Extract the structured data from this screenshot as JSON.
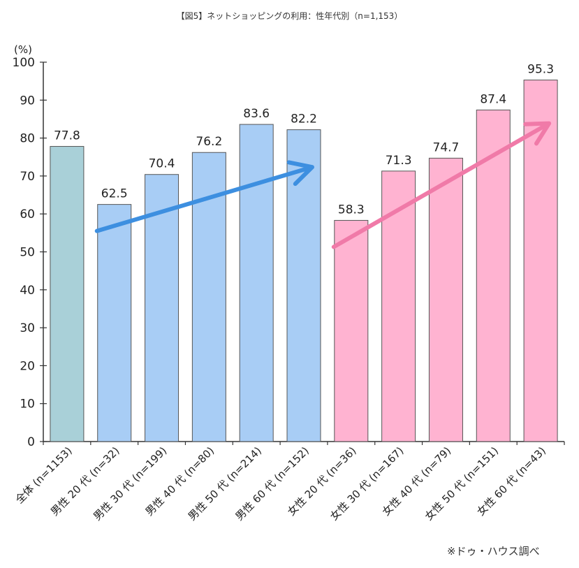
{
  "chart_data": {
    "type": "bar",
    "title": "【図5】ネットショッピングの利用：性年代別（n=1,153）",
    "ylabel": "(%)",
    "ylim": [
      0,
      100
    ],
    "yticks": [
      0,
      10,
      20,
      30,
      40,
      50,
      60,
      70,
      80,
      90,
      100
    ],
    "grid": false,
    "categories": [
      "全体 (n=1153)",
      "男性 20 代 (n=32)",
      "男性 30 代 (n=199)",
      "男性 40 代 (n=80)",
      "男性 50 代 (n=214)",
      "男性 60 代 (n=152)",
      "女性 20 代 (n=36)",
      "女性 30 代 (n=167)",
      "女性 40 代 (n=79)",
      "女性 50 代 (n=151)",
      "女性 60 代 (n=43)"
    ],
    "values": [
      77.8,
      62.5,
      70.4,
      76.2,
      83.6,
      82.2,
      58.3,
      71.3,
      74.7,
      87.4,
      95.3
    ],
    "value_labels": [
      "77.8",
      "62.5",
      "70.4",
      "76.2",
      "83.6",
      "82.2",
      "58.3",
      "71.3",
      "74.7",
      "87.4",
      "95.3"
    ],
    "groups": [
      "total",
      "male",
      "male",
      "male",
      "male",
      "male",
      "female",
      "female",
      "female",
      "female",
      "female"
    ],
    "colors": {
      "total": "#a9d0d8",
      "male": "#a8cdf5",
      "female": "#ffb3d1",
      "bar_border": "#555555",
      "axis": "#333333",
      "male_arrow": "#3d8fe0",
      "female_arrow": "#f07aa8"
    },
    "annotations": [
      {
        "type": "trend-arrow",
        "group": "male",
        "from_category": 1,
        "to_category": 5
      },
      {
        "type": "trend-arrow",
        "group": "female",
        "from_category": 6,
        "to_category": 10
      }
    ]
  },
  "source_note": "※ドゥ・ハウス調べ"
}
